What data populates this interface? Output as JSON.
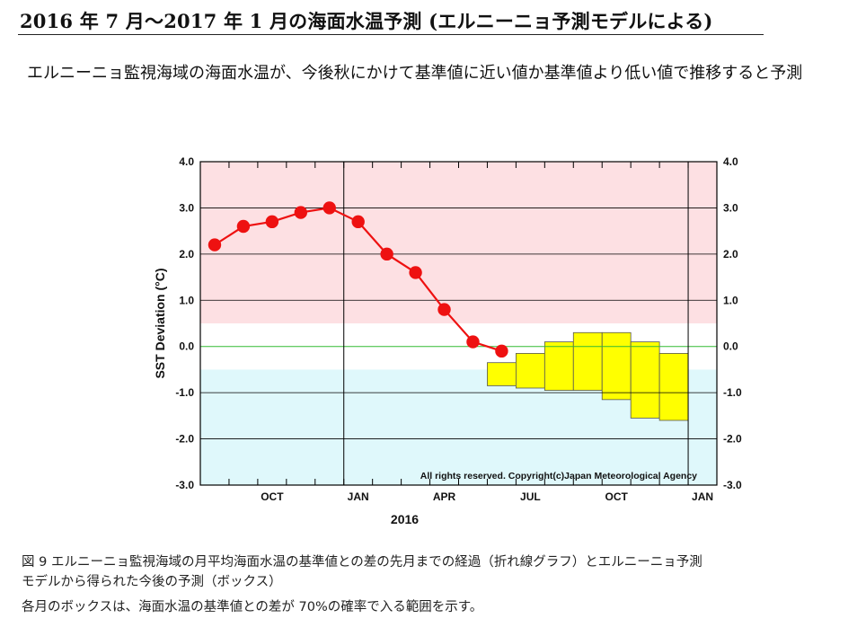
{
  "header": {
    "title": "2016 年 7 月～2017 年 1 月の海面水温予測 (エルニーニョ予測モデルによる)",
    "subtitle": "エルニーニョ監視海域の海面水温が、今後秋にかけて基準値に近い値か基準値より低い値で推移すると予測"
  },
  "caption": {
    "line1": "図 9 エルニーニョ監視海域の月平均海面水温の基準値との差の先月までの経過（折れ線グラフ）とエルニーニョ予測",
    "line2": "モデルから得られた今後の予測（ボックス）",
    "note": "各月のボックスは、海面水温の基準値との差が 70%の確率で入る範囲を示す。"
  },
  "chart_data": {
    "type": "line",
    "ylabel": "SST Deviation (°C)",
    "xlabel": "2016",
    "ylim": [
      -3.0,
      4.0
    ],
    "y_ticks": [
      "4.0",
      "3.0",
      "2.0",
      "1.0",
      "0.0",
      "-1.0",
      "-2.0",
      "-3.0"
    ],
    "x_tick_labels": [
      "OCT",
      "JAN",
      "APR",
      "JUL",
      "OCT",
      "JAN"
    ],
    "copyright": "All rights reserved. Copyright(c)Japan   Meteorological Agency",
    "months": [
      "2015-08",
      "2015-09",
      "2015-10",
      "2015-11",
      "2015-12",
      "2016-01",
      "2016-02",
      "2016-03",
      "2016-04",
      "2016-05",
      "2016-06",
      "2016-07",
      "2016-08",
      "2016-09",
      "2016-10",
      "2016-11",
      "2016-12",
      "2017-01"
    ],
    "bands": [
      {
        "from": 0.5,
        "to": 4.0,
        "color": "#fde0e3"
      },
      {
        "from": -3.0,
        "to": -0.5,
        "color": "#dff8fb"
      }
    ],
    "zero_line_color": "#33bb33",
    "series": [
      {
        "color": "#ee1111",
        "points": [
          {
            "month": "2015-08",
            "value": 2.2
          },
          {
            "month": "2015-09",
            "value": 2.6
          },
          {
            "month": "2015-10",
            "value": 2.7
          },
          {
            "month": "2015-11",
            "value": 2.9
          },
          {
            "month": "2015-12",
            "value": 3.0
          },
          {
            "month": "2016-01",
            "value": 2.7
          },
          {
            "month": "2016-02",
            "value": 2.0
          },
          {
            "month": "2016-03",
            "value": 1.6
          },
          {
            "month": "2016-04",
            "value": 0.8
          },
          {
            "month": "2016-05",
            "value": 0.1
          },
          {
            "month": "2016-06",
            "value": -0.1
          }
        ]
      }
    ],
    "forecast_boxes": {
      "color": "#ffff00",
      "boxes": [
        {
          "month": "2016-06",
          "low": -0.85,
          "high": -0.35
        },
        {
          "month": "2016-07",
          "low": -0.9,
          "high": -0.15
        },
        {
          "month": "2016-08",
          "low": -0.95,
          "high": 0.1
        },
        {
          "month": "2016-09",
          "low": -0.95,
          "high": 0.3
        },
        {
          "month": "2016-10",
          "low": -1.15,
          "high": 0.3
        },
        {
          "month": "2016-11",
          "low": -1.55,
          "high": 0.1
        },
        {
          "month": "2016-12",
          "low": -1.6,
          "high": -0.15
        }
      ]
    }
  }
}
